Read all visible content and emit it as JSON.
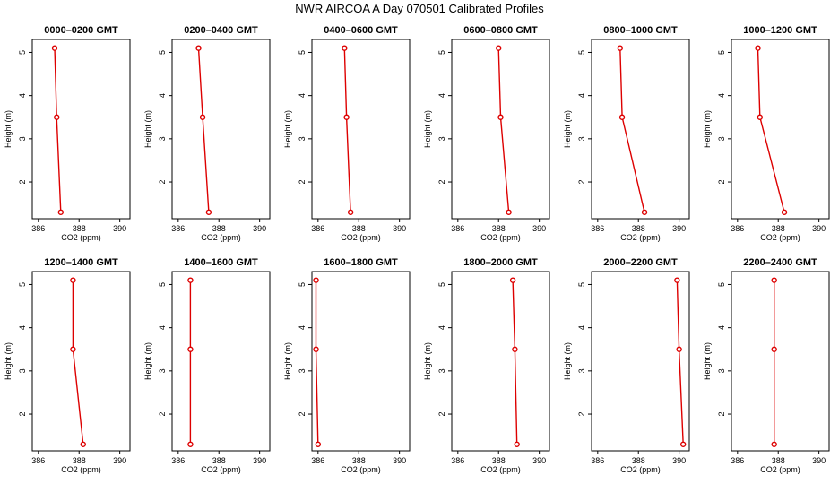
{
  "title": "NWR AIRCOA A  Day 070501  Calibrated Profiles",
  "colors": {
    "series": "#dd0000",
    "axes": "#000000",
    "background": "#ffffff"
  },
  "chart_data": [
    {
      "type": "line",
      "title": "0000–0200 GMT",
      "xlabel": "CO2 (ppm)",
      "ylabel": "Height (m)",
      "xlim": [
        385.7,
        390.5
      ],
      "ylim": [
        1.15,
        5.3
      ],
      "xticks": [
        386,
        388,
        390
      ],
      "yticks": [
        2,
        3,
        4,
        5
      ],
      "grid": false,
      "x": [
        386.8,
        386.9,
        387.1
      ],
      "y": [
        5.1,
        3.5,
        1.3
      ]
    },
    {
      "type": "line",
      "title": "0200–0400 GMT",
      "xlabel": "CO2 (ppm)",
      "ylabel": "Height (m)",
      "xlim": [
        385.7,
        390.5
      ],
      "ylim": [
        1.15,
        5.3
      ],
      "xticks": [
        386,
        388,
        390
      ],
      "yticks": [
        2,
        3,
        4,
        5
      ],
      "grid": false,
      "x": [
        387.0,
        387.2,
        387.5
      ],
      "y": [
        5.1,
        3.5,
        1.3
      ]
    },
    {
      "type": "line",
      "title": "0400–0600 GMT",
      "xlabel": "CO2 (ppm)",
      "ylabel": "Height (m)",
      "xlim": [
        385.7,
        390.5
      ],
      "ylim": [
        1.15,
        5.3
      ],
      "xticks": [
        386,
        388,
        390
      ],
      "yticks": [
        2,
        3,
        4,
        5
      ],
      "grid": false,
      "x": [
        387.3,
        387.4,
        387.6
      ],
      "y": [
        5.1,
        3.5,
        1.3
      ]
    },
    {
      "type": "line",
      "title": "0600–0800 GMT",
      "xlabel": "CO2 (ppm)",
      "ylabel": "Height (m)",
      "xlim": [
        385.7,
        390.5
      ],
      "ylim": [
        1.15,
        5.3
      ],
      "xticks": [
        386,
        388,
        390
      ],
      "yticks": [
        2,
        3,
        4,
        5
      ],
      "grid": false,
      "x": [
        388.0,
        388.1,
        388.5
      ],
      "y": [
        5.1,
        3.5,
        1.3
      ]
    },
    {
      "type": "line",
      "title": "0800–1000 GMT",
      "xlabel": "CO2 (ppm)",
      "ylabel": "Height (m)",
      "xlim": [
        385.7,
        390.5
      ],
      "ylim": [
        1.15,
        5.3
      ],
      "xticks": [
        386,
        388,
        390
      ],
      "yticks": [
        2,
        3,
        4,
        5
      ],
      "grid": false,
      "x": [
        387.1,
        387.2,
        388.3
      ],
      "y": [
        5.1,
        3.5,
        1.3
      ]
    },
    {
      "type": "line",
      "title": "1000–1200 GMT",
      "xlabel": "CO2 (ppm)",
      "ylabel": "Height (m)",
      "xlim": [
        385.7,
        390.5
      ],
      "ylim": [
        1.15,
        5.3
      ],
      "xticks": [
        386,
        388,
        390
      ],
      "yticks": [
        2,
        3,
        4,
        5
      ],
      "grid": false,
      "x": [
        387.0,
        387.1,
        388.3
      ],
      "y": [
        5.1,
        3.5,
        1.3
      ]
    },
    {
      "type": "line",
      "title": "1200–1400 GMT",
      "xlabel": "CO2 (ppm)",
      "ylabel": "Height (m)",
      "xlim": [
        385.7,
        390.5
      ],
      "ylim": [
        1.15,
        5.3
      ],
      "xticks": [
        386,
        388,
        390
      ],
      "yticks": [
        2,
        3,
        4,
        5
      ],
      "grid": false,
      "x": [
        387.7,
        387.7,
        388.2
      ],
      "y": [
        5.1,
        3.5,
        1.3
      ]
    },
    {
      "type": "line",
      "title": "1400–1600 GMT",
      "xlabel": "CO2 (ppm)",
      "ylabel": "Height (m)",
      "xlim": [
        385.7,
        390.5
      ],
      "ylim": [
        1.15,
        5.3
      ],
      "xticks": [
        386,
        388,
        390
      ],
      "yticks": [
        2,
        3,
        4,
        5
      ],
      "grid": false,
      "x": [
        386.6,
        386.6,
        386.6
      ],
      "y": [
        5.1,
        3.5,
        1.3
      ]
    },
    {
      "type": "line",
      "title": "1600–1800 GMT",
      "xlabel": "CO2 (ppm)",
      "ylabel": "Height (m)",
      "xlim": [
        385.7,
        390.5
      ],
      "ylim": [
        1.15,
        5.3
      ],
      "xticks": [
        386,
        388,
        390
      ],
      "yticks": [
        2,
        3,
        4,
        5
      ],
      "grid": false,
      "x": [
        385.9,
        385.9,
        386.0
      ],
      "y": [
        5.1,
        3.5,
        1.3
      ]
    },
    {
      "type": "line",
      "title": "1800–2000 GMT",
      "xlabel": "CO2 (ppm)",
      "ylabel": "Height (m)",
      "xlim": [
        385.7,
        390.5
      ],
      "ylim": [
        1.15,
        5.3
      ],
      "xticks": [
        386,
        388,
        390
      ],
      "yticks": [
        2,
        3,
        4,
        5
      ],
      "grid": false,
      "x": [
        388.7,
        388.8,
        388.9
      ],
      "y": [
        5.1,
        3.5,
        1.3
      ]
    },
    {
      "type": "line",
      "title": "2000–2200 GMT",
      "xlabel": "CO2 (ppm)",
      "ylabel": "Height (m)",
      "xlim": [
        385.7,
        390.5
      ],
      "ylim": [
        1.15,
        5.3
      ],
      "xticks": [
        386,
        388,
        390
      ],
      "yticks": [
        2,
        3,
        4,
        5
      ],
      "grid": false,
      "x": [
        389.9,
        390.0,
        390.2
      ],
      "y": [
        5.1,
        3.5,
        1.3
      ]
    },
    {
      "type": "line",
      "title": "2200–2400 GMT",
      "xlabel": "CO2 (ppm)",
      "ylabel": "Height (m)",
      "xlim": [
        385.7,
        390.5
      ],
      "ylim": [
        1.15,
        5.3
      ],
      "xticks": [
        386,
        388,
        390
      ],
      "yticks": [
        2,
        3,
        4,
        5
      ],
      "grid": false,
      "x": [
        387.8,
        387.8,
        387.8
      ],
      "y": [
        5.1,
        3.5,
        1.3
      ]
    }
  ]
}
